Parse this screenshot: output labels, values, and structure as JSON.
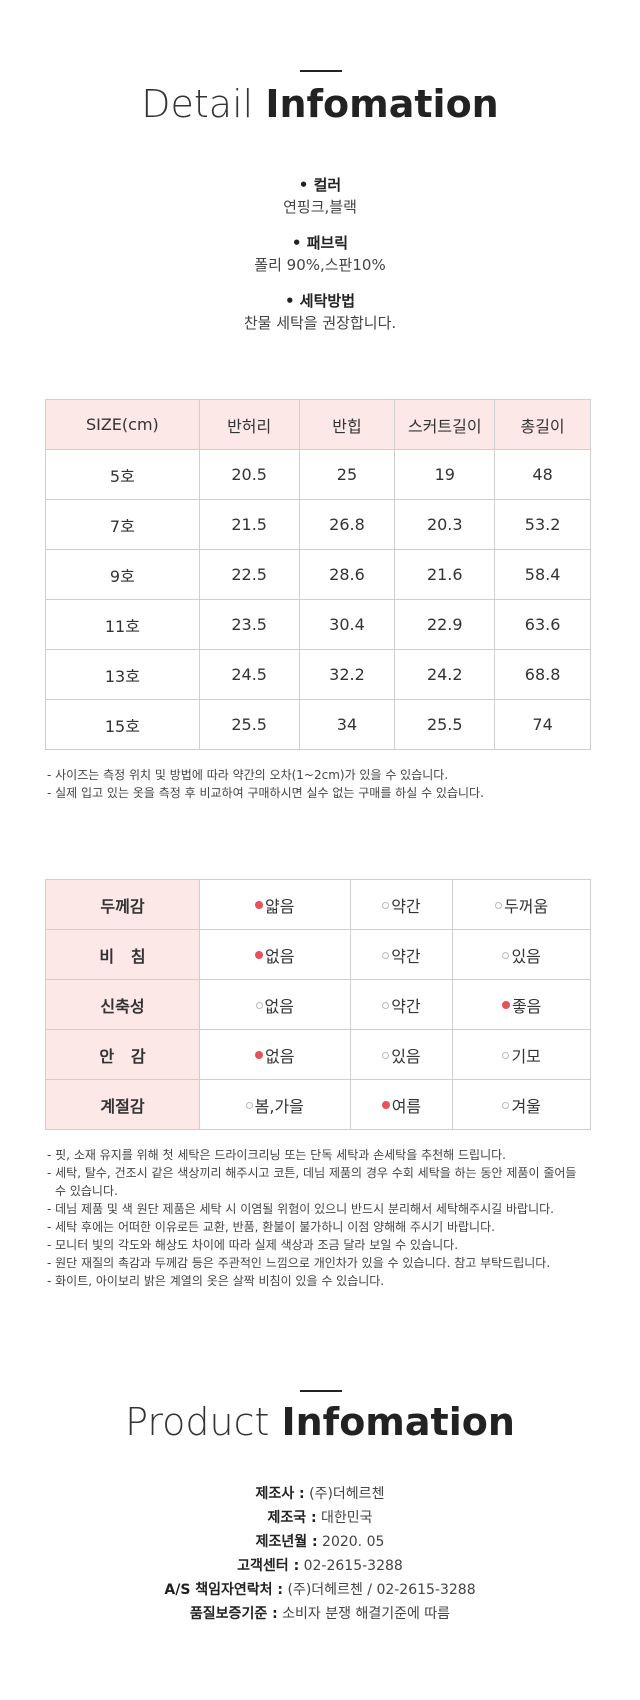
{
  "detail": {
    "title_light": "Detail",
    "title_bold": "Infomation",
    "items": [
      {
        "label": "• 컬러",
        "value": "연핑크,블랙"
      },
      {
        "label": "• 패브릭",
        "value": "폴리 90%,스판10%"
      },
      {
        "label": "• 세탁방법",
        "value": "찬물 세탁을 권장합니다."
      }
    ]
  },
  "size_table": {
    "headers": [
      "SIZE(cm)",
      "반허리",
      "반힙",
      "스커트길이",
      "총길이"
    ],
    "rows": [
      [
        "5호",
        "20.5",
        "25",
        "19",
        "48"
      ],
      [
        "7호",
        "21.5",
        "26.8",
        "20.3",
        "53.2"
      ],
      [
        "9호",
        "22.5",
        "28.6",
        "21.6",
        "58.4"
      ],
      [
        "11호",
        "23.5",
        "30.4",
        "22.9",
        "63.6"
      ],
      [
        "13호",
        "24.5",
        "32.2",
        "24.2",
        "68.8"
      ],
      [
        "15호",
        "25.5",
        "34",
        "25.5",
        "74"
      ]
    ]
  },
  "size_notes": [
    "- 사이즈는 측정 위치 및 방법에 따라 약간의 오차(1~2cm)가 있을 수 있습니다.",
    "- 실제 입고 있는 옷을 측정 후 비교하여 구매하시면 실수 없는 구매를 하실 수 있습니다."
  ],
  "feel_table": {
    "rows": [
      {
        "head": "두께감",
        "options": [
          {
            "text": "얇음",
            "selected": true
          },
          {
            "text": "약간",
            "selected": false
          },
          {
            "text": "두꺼움",
            "selected": false
          }
        ]
      },
      {
        "head": "비   침",
        "options": [
          {
            "text": "없음",
            "selected": true
          },
          {
            "text": "약간",
            "selected": false
          },
          {
            "text": "있음",
            "selected": false
          }
        ]
      },
      {
        "head": "신축성",
        "options": [
          {
            "text": "없음",
            "selected": false
          },
          {
            "text": "약간",
            "selected": false
          },
          {
            "text": "좋음",
            "selected": true
          }
        ]
      },
      {
        "head": "안   감",
        "options": [
          {
            "text": "없음",
            "selected": true
          },
          {
            "text": "있음",
            "selected": false
          },
          {
            "text": "기모",
            "selected": false
          }
        ]
      },
      {
        "head": "계절감",
        "options": [
          {
            "text": "봄,가을",
            "selected": false
          },
          {
            "text": "여름",
            "selected": true
          },
          {
            "text": "겨울",
            "selected": false
          }
        ]
      }
    ]
  },
  "care_notes": [
    "- 핏, 소재 유지를 위해 첫 세탁은 드라이크리닝 또는 단독 세탁과 손세탁을 추천해 드립니다.",
    "- 세탁, 탈수, 건조시 같은 색상끼리 해주시고 코튼, 데님 제품의 경우 수회 세탁을 하는 동안 제품이 줄어들 수 있습니다.",
    "- 데님 제품 및 색 원단 제품은 세탁 시 이염될 위험이 있으니 반드시 분리해서 세탁해주시길 바랍니다.",
    "- 세탁 후에는 어떠한 이유로든 교환, 반품, 환불이 불가하니 이점 양해해 주시기 바랍니다.",
    "- 모니터 빛의 각도와 해상도 차이에 따라 실제 색상과 조금 달라 보일 수 있습니다.",
    "- 원단 재질의 촉감과 두께감 등은 주관적인 느낌으로 개인차가 있을 수 있습니다. 참고 부탁드립니다.",
    "- 화이트, 아이보리 밝은 계열의 옷은 살짝 비침이 있을 수 있습니다."
  ],
  "product": {
    "title_light": "Product",
    "title_bold": "Infomation",
    "rows": [
      {
        "key": "제조사 :",
        "value": " (주)더헤르첸"
      },
      {
        "key": "제조국 :",
        "value": " 대한민국"
      },
      {
        "key": "제조년월 :",
        "value": " 2020. 05"
      },
      {
        "key": "고객센터 :",
        "value": " 02-2615-3288"
      },
      {
        "key": "A/S 책임자연락처 :",
        "value": " (주)더헤르첸 / 02-2615-3288"
      },
      {
        "key": "품질보증기준 :",
        "value": " 소비자 분쟁 해결기준에 따름"
      }
    ]
  },
  "colors": {
    "accent_dot": "#e8505b",
    "header_bg": "#fde8e8"
  }
}
